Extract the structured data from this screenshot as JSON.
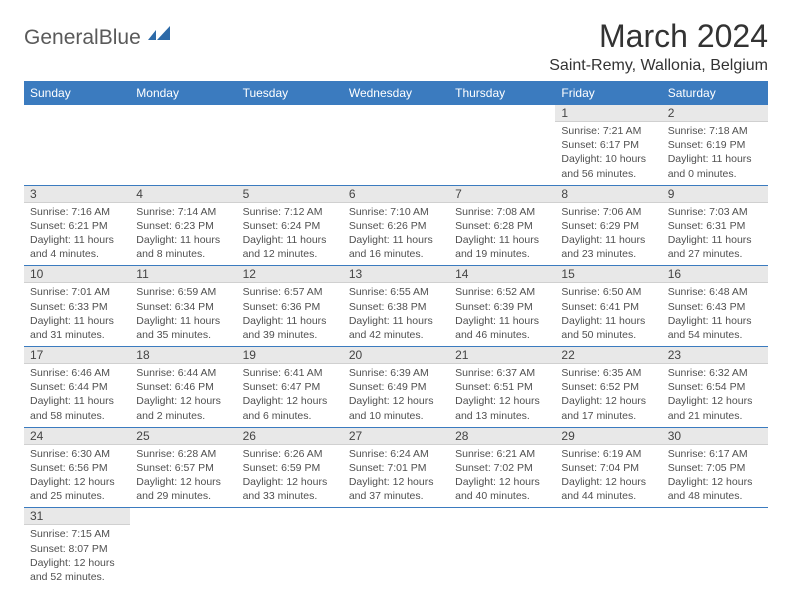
{
  "logo": {
    "text_gray": "General",
    "text_blue": "Blue"
  },
  "title": "March 2024",
  "location": "Saint-Remy, Wallonia, Belgium",
  "colors": {
    "header_bg": "#3b7bbf",
    "header_fg": "#ffffff",
    "daynum_bg": "#e8e8e8",
    "rule": "#3b7bbf",
    "text": "#333333",
    "muted": "#505050"
  },
  "columns": [
    "Sunday",
    "Monday",
    "Tuesday",
    "Wednesday",
    "Thursday",
    "Friday",
    "Saturday"
  ],
  "weeks": [
    [
      null,
      null,
      null,
      null,
      null,
      {
        "n": "1",
        "sr": "7:21 AM",
        "ss": "6:17 PM",
        "dl": "10 hours and 56 minutes."
      },
      {
        "n": "2",
        "sr": "7:18 AM",
        "ss": "6:19 PM",
        "dl": "11 hours and 0 minutes."
      }
    ],
    [
      {
        "n": "3",
        "sr": "7:16 AM",
        "ss": "6:21 PM",
        "dl": "11 hours and 4 minutes."
      },
      {
        "n": "4",
        "sr": "7:14 AM",
        "ss": "6:23 PM",
        "dl": "11 hours and 8 minutes."
      },
      {
        "n": "5",
        "sr": "7:12 AM",
        "ss": "6:24 PM",
        "dl": "11 hours and 12 minutes."
      },
      {
        "n": "6",
        "sr": "7:10 AM",
        "ss": "6:26 PM",
        "dl": "11 hours and 16 minutes."
      },
      {
        "n": "7",
        "sr": "7:08 AM",
        "ss": "6:28 PM",
        "dl": "11 hours and 19 minutes."
      },
      {
        "n": "8",
        "sr": "7:06 AM",
        "ss": "6:29 PM",
        "dl": "11 hours and 23 minutes."
      },
      {
        "n": "9",
        "sr": "7:03 AM",
        "ss": "6:31 PM",
        "dl": "11 hours and 27 minutes."
      }
    ],
    [
      {
        "n": "10",
        "sr": "7:01 AM",
        "ss": "6:33 PM",
        "dl": "11 hours and 31 minutes."
      },
      {
        "n": "11",
        "sr": "6:59 AM",
        "ss": "6:34 PM",
        "dl": "11 hours and 35 minutes."
      },
      {
        "n": "12",
        "sr": "6:57 AM",
        "ss": "6:36 PM",
        "dl": "11 hours and 39 minutes."
      },
      {
        "n": "13",
        "sr": "6:55 AM",
        "ss": "6:38 PM",
        "dl": "11 hours and 42 minutes."
      },
      {
        "n": "14",
        "sr": "6:52 AM",
        "ss": "6:39 PM",
        "dl": "11 hours and 46 minutes."
      },
      {
        "n": "15",
        "sr": "6:50 AM",
        "ss": "6:41 PM",
        "dl": "11 hours and 50 minutes."
      },
      {
        "n": "16",
        "sr": "6:48 AM",
        "ss": "6:43 PM",
        "dl": "11 hours and 54 minutes."
      }
    ],
    [
      {
        "n": "17",
        "sr": "6:46 AM",
        "ss": "6:44 PM",
        "dl": "11 hours and 58 minutes."
      },
      {
        "n": "18",
        "sr": "6:44 AM",
        "ss": "6:46 PM",
        "dl": "12 hours and 2 minutes."
      },
      {
        "n": "19",
        "sr": "6:41 AM",
        "ss": "6:47 PM",
        "dl": "12 hours and 6 minutes."
      },
      {
        "n": "20",
        "sr": "6:39 AM",
        "ss": "6:49 PM",
        "dl": "12 hours and 10 minutes."
      },
      {
        "n": "21",
        "sr": "6:37 AM",
        "ss": "6:51 PM",
        "dl": "12 hours and 13 minutes."
      },
      {
        "n": "22",
        "sr": "6:35 AM",
        "ss": "6:52 PM",
        "dl": "12 hours and 17 minutes."
      },
      {
        "n": "23",
        "sr": "6:32 AM",
        "ss": "6:54 PM",
        "dl": "12 hours and 21 minutes."
      }
    ],
    [
      {
        "n": "24",
        "sr": "6:30 AM",
        "ss": "6:56 PM",
        "dl": "12 hours and 25 minutes."
      },
      {
        "n": "25",
        "sr": "6:28 AM",
        "ss": "6:57 PM",
        "dl": "12 hours and 29 minutes."
      },
      {
        "n": "26",
        "sr": "6:26 AM",
        "ss": "6:59 PM",
        "dl": "12 hours and 33 minutes."
      },
      {
        "n": "27",
        "sr": "6:24 AM",
        "ss": "7:01 PM",
        "dl": "12 hours and 37 minutes."
      },
      {
        "n": "28",
        "sr": "6:21 AM",
        "ss": "7:02 PM",
        "dl": "12 hours and 40 minutes."
      },
      {
        "n": "29",
        "sr": "6:19 AM",
        "ss": "7:04 PM",
        "dl": "12 hours and 44 minutes."
      },
      {
        "n": "30",
        "sr": "6:17 AM",
        "ss": "7:05 PM",
        "dl": "12 hours and 48 minutes."
      }
    ],
    [
      {
        "n": "31",
        "sr": "7:15 AM",
        "ss": "8:07 PM",
        "dl": "12 hours and 52 minutes."
      },
      null,
      null,
      null,
      null,
      null,
      null
    ]
  ],
  "labels": {
    "sunrise": "Sunrise:",
    "sunset": "Sunset:",
    "daylight": "Daylight:"
  }
}
